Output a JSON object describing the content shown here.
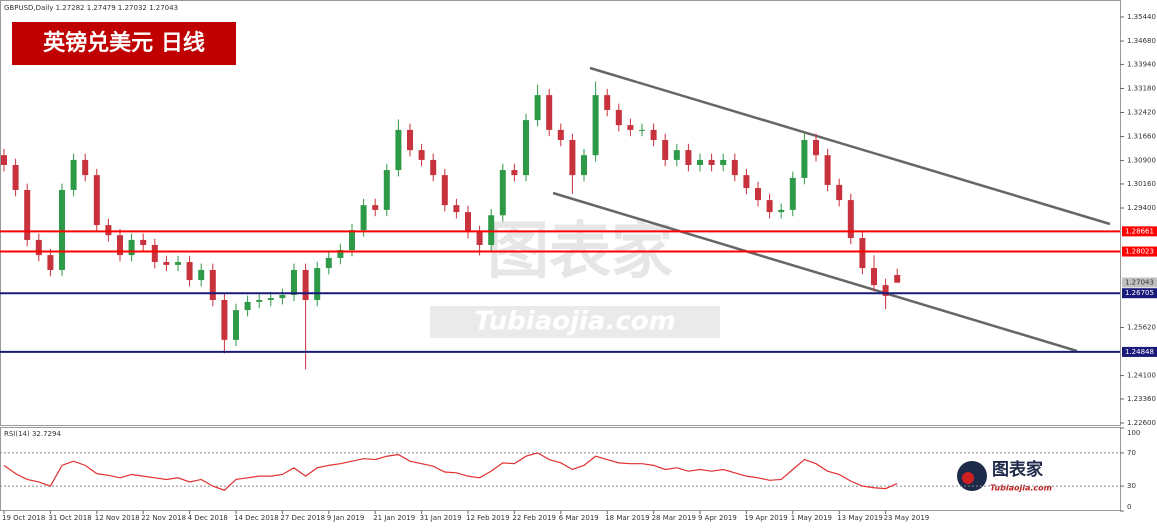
{
  "chart_data": {
    "type": "candlestick",
    "symbol_info": "GBPUSD,Daily  1.27282 1.27479 1.27032 1.27043",
    "title": "英镑兑美元  日线",
    "categories": [
      "19 Oct 2018",
      null,
      null,
      null,
      "31 Oct 2018",
      null,
      null,
      null,
      "12 Nov 2018",
      null,
      null,
      null,
      "22 Nov 2018",
      null,
      null,
      null,
      "4 Dec 2018",
      null,
      null,
      null,
      "14 Dec 2018",
      null,
      null,
      null,
      "27 Dec 2018",
      null,
      null,
      null,
      "9 Jan 2019",
      null,
      null,
      null,
      "21 Jan 2019",
      null,
      null,
      null,
      "31 Jan 2019",
      null,
      null,
      null,
      "12 Feb 2019",
      null,
      null,
      null,
      "22 Feb 2019",
      null,
      null,
      null,
      "6 Mar 2019",
      null,
      null,
      null,
      "18 Mar 2019",
      null,
      null,
      null,
      "28 Mar 2019",
      null,
      null,
      null,
      "9 Apr 2019",
      null,
      null,
      null,
      "19 Apr 2019",
      null,
      null,
      null,
      "1 May 2019",
      null,
      null,
      null,
      "13 May 2019",
      null,
      null,
      null,
      "23 May 2019",
      null
    ],
    "open": [
      1.3107,
      1.3076,
      1.2997,
      1.2839,
      1.2791,
      1.2744,
      1.2997,
      1.3092,
      1.3044,
      1.2886,
      1.2854,
      1.2791,
      1.2839,
      1.2823,
      1.2769,
      1.276,
      1.2769,
      1.2712,
      1.2744,
      1.2649,
      1.2523,
      1.2617,
      1.2643,
      1.2649,
      1.2655,
      1.2665,
      1.2744,
      1.2649,
      1.275,
      1.2782,
      1.2807,
      1.287,
      1.2949,
      1.2934,
      1.306,
      1.3187,
      1.3123,
      1.3092,
      1.3044,
      1.2949,
      1.2927,
      1.2864,
      1.2823,
      1.2917,
      1.306,
      1.3044,
      1.3218,
      1.3297,
      1.3187,
      1.3155,
      1.3044,
      1.3107,
      1.3297,
      1.325,
      1.3202,
      1.3187,
      1.3187,
      1.3155,
      1.3092,
      1.3123,
      1.3076,
      1.3092,
      1.3076,
      1.3092,
      1.3044,
      1.3003,
      1.2965,
      1.2927,
      1.2934,
      1.3035,
      1.3155,
      1.3107,
      1.3013,
      1.2965,
      1.2845,
      1.275,
      1.2696,
      1.2728
    ],
    "high": [
      1.3127,
      1.3096,
      1.3017,
      1.2859,
      1.2811,
      1.3017,
      1.3112,
      1.3112,
      1.3064,
      1.2906,
      1.2874,
      1.2859,
      1.2859,
      1.2843,
      1.2789,
      1.2789,
      1.2789,
      1.2764,
      1.2764,
      1.2669,
      1.2637,
      1.2663,
      1.2669,
      1.2675,
      1.2685,
      1.2764,
      1.2764,
      1.277,
      1.2802,
      1.2827,
      1.289,
      1.2969,
      1.2969,
      1.308,
      1.322,
      1.3207,
      1.3143,
      1.3112,
      1.3064,
      1.2969,
      1.2947,
      1.2884,
      1.2937,
      1.308,
      1.308,
      1.3238,
      1.333,
      1.3317,
      1.3207,
      1.3175,
      1.3127,
      1.334,
      1.3317,
      1.327,
      1.3222,
      1.3207,
      1.3207,
      1.3175,
      1.3143,
      1.3143,
      1.3112,
      1.3112,
      1.3112,
      1.3112,
      1.3064,
      1.3023,
      1.2985,
      1.2954,
      1.3055,
      1.318,
      1.3175,
      1.3127,
      1.3033,
      1.2985,
      1.2865,
      1.279,
      1.2716,
      1.2748
    ],
    "low": [
      1.3056,
      1.2977,
      1.2819,
      1.2771,
      1.2724,
      1.2724,
      1.2977,
      1.3024,
      1.2866,
      1.2834,
      1.2771,
      1.2771,
      1.2803,
      1.2749,
      1.274,
      1.274,
      1.2692,
      1.2692,
      1.2629,
      1.248,
      1.2503,
      1.2597,
      1.2623,
      1.2629,
      1.2635,
      1.2645,
      1.243,
      1.2629,
      1.273,
      1.2762,
      1.2787,
      1.285,
      1.2914,
      1.2914,
      1.304,
      1.3103,
      1.3072,
      1.3024,
      1.2929,
      1.2907,
      1.2844,
      1.279,
      1.2803,
      1.2897,
      1.3024,
      1.3024,
      1.3198,
      1.3167,
      1.3135,
      1.2985,
      1.3024,
      1.3087,
      1.323,
      1.3182,
      1.3167,
      1.3167,
      1.3135,
      1.3072,
      1.3072,
      1.3056,
      1.3056,
      1.3056,
      1.3056,
      1.3024,
      1.2983,
      1.2945,
      1.2907,
      1.2907,
      1.2914,
      1.3015,
      1.3087,
      1.2993,
      1.2945,
      1.2825,
      1.273,
      1.2676,
      1.262,
      1.2703
    ],
    "close": [
      1.3076,
      1.2997,
      1.2839,
      1.2791,
      1.2744,
      1.2997,
      1.3092,
      1.3044,
      1.2886,
      1.2854,
      1.2791,
      1.2839,
      1.2823,
      1.2769,
      1.276,
      1.2769,
      1.2712,
      1.2744,
      1.2649,
      1.2523,
      1.2617,
      1.2643,
      1.2649,
      1.2655,
      1.2665,
      1.2744,
      1.2649,
      1.275,
      1.2782,
      1.2807,
      1.287,
      1.2949,
      1.2934,
      1.306,
      1.3187,
      1.3123,
      1.3092,
      1.3044,
      1.2949,
      1.2927,
      1.2864,
      1.2823,
      1.2917,
      1.306,
      1.3044,
      1.3218,
      1.3297,
      1.3187,
      1.3155,
      1.3044,
      1.3107,
      1.3297,
      1.325,
      1.3202,
      1.3187,
      1.3187,
      1.3155,
      1.3092,
      1.3123,
      1.3076,
      1.3092,
      1.3076,
      1.3092,
      1.3044,
      1.3003,
      1.2965,
      1.2927,
      1.2934,
      1.3035,
      1.3155,
      1.3107,
      1.3013,
      1.2965,
      1.2845,
      1.275,
      1.2696,
      1.2662,
      1.2704
    ],
    "up_color": "#2e9a48",
    "down_color": "#c8323c",
    "ylim": [
      1.22537,
      1.35883
    ],
    "yticks": [
      {
        "value": 1.3544,
        "label": "1.35440"
      },
      {
        "value": 1.3468,
        "label": "1.34680"
      },
      {
        "value": 1.3394,
        "label": "1.33940"
      },
      {
        "value": 1.3318,
        "label": "1.33180"
      },
      {
        "value": 1.3242,
        "label": "1.32420"
      },
      {
        "value": 1.3166,
        "label": "1.31660"
      },
      {
        "value": 1.309,
        "label": "1.30900"
      },
      {
        "value": 1.3016,
        "label": "1.30160"
      },
      {
        "value": 1.294,
        "label": "1.29400"
      },
      {
        "value": 1.2562,
        "label": "1.25620"
      },
      {
        "value": 1.241,
        "label": "1.24100"
      },
      {
        "value": 1.2336,
        "label": "1.23360"
      },
      {
        "value": 1.226,
        "label": "1.22600"
      }
    ],
    "grid": false,
    "levels": [
      {
        "value": 1.28661,
        "color": "#ff0000"
      },
      {
        "value": 1.28023,
        "color": "#ff0000"
      },
      {
        "value": 1.26705,
        "color": "#1a1a7a"
      },
      {
        "value": 1.24848,
        "color": "#1a1a7a"
      }
    ],
    "last_price": 1.27043,
    "rsi": {
      "label": "RSI(14) 32.7294",
      "color": "#e03030",
      "ylim": [
        0,
        100
      ],
      "yticks": [
        100,
        70,
        30,
        0
      ],
      "levels": [
        70,
        30
      ],
      "values": [
        55,
        45,
        38,
        35,
        30,
        55,
        60,
        55,
        45,
        43,
        40,
        44,
        42,
        40,
        38,
        40,
        35,
        38,
        30,
        25,
        38,
        40,
        42,
        42,
        44,
        52,
        42,
        52,
        55,
        57,
        60,
        63,
        62,
        66,
        68,
        60,
        57,
        54,
        47,
        46,
        42,
        40,
        48,
        58,
        57,
        66,
        70,
        62,
        58,
        50,
        55,
        66,
        62,
        58,
        57,
        57,
        55,
        50,
        52,
        48,
        50,
        48,
        50,
        46,
        42,
        40,
        37,
        38,
        50,
        62,
        57,
        48,
        44,
        36,
        30,
        28,
        27,
        33
      ]
    },
    "brand": {
      "cn": "图表家",
      "en": "Tubiaojia.com"
    }
  }
}
